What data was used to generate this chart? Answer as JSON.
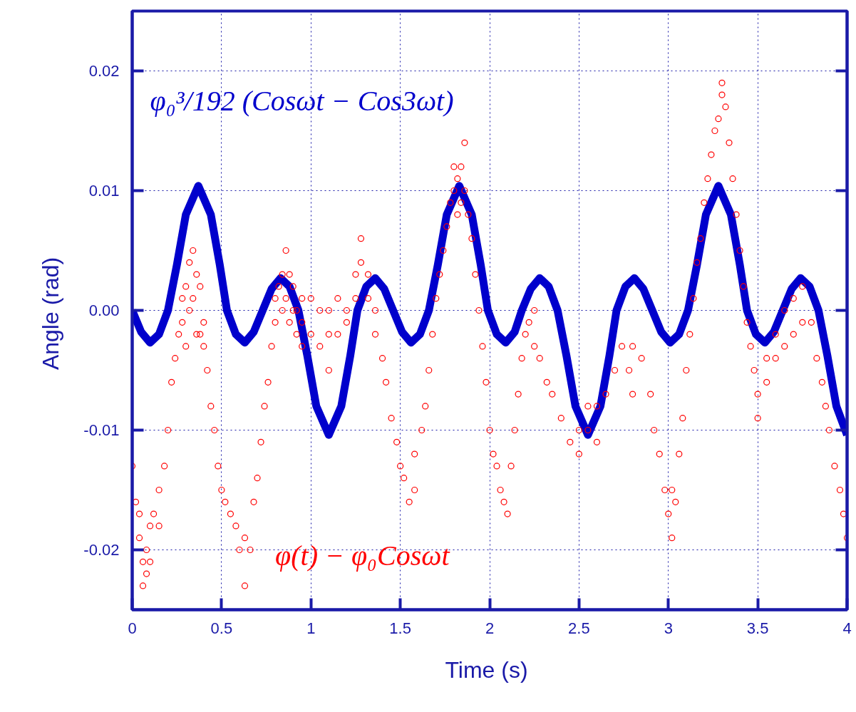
{
  "chart_data": {
    "type": "line",
    "xlabel": "Time  (s)",
    "ylabel": "Angle  (rad)",
    "xlim": [
      0,
      4
    ],
    "xticks": [
      0,
      0.5,
      1,
      1.5,
      2,
      2.5,
      3,
      3.5,
      4
    ],
    "ylim": [
      -0.025,
      0.025
    ],
    "yticks": [
      -0.02,
      -0.01,
      {
        "value": 0,
        "label": "0.00"
      },
      0.01,
      0.02
    ],
    "grid": true,
    "series": [
      {
        "name": "φ₀³/192 (Cosωt − Cos3ωt)",
        "color": "#0000cc",
        "marker": "none",
        "line_style": "solid",
        "x": [
          0,
          0.05,
          0.1,
          0.15,
          0.2,
          0.25,
          0.3,
          0.37,
          0.44,
          0.49,
          0.53,
          0.58,
          0.63,
          0.68,
          0.73,
          0.78,
          0.83,
          0.88,
          0.93,
          0.98,
          1.03,
          1.1,
          1.17,
          1.22,
          1.26,
          1.31,
          1.36,
          1.41,
          1.46,
          1.51,
          1.56,
          1.61,
          1.66,
          1.71,
          1.76,
          1.83,
          1.9,
          1.95,
          1.99,
          2.04,
          2.09,
          2.14,
          2.18,
          2.23,
          2.28,
          2.33,
          2.38,
          2.43,
          2.48,
          2.55,
          2.62,
          2.67,
          2.71,
          2.76,
          2.81,
          2.86,
          2.91,
          2.96,
          3.01,
          3.06,
          3.11,
          3.16,
          3.21,
          3.28,
          3.35,
          3.4,
          3.44,
          3.49,
          3.54,
          3.59,
          3.64,
          3.69,
          3.74,
          3.79,
          3.84,
          3.89,
          3.94,
          4.0
        ],
        "values": [
          0,
          -0.0018,
          -0.0027,
          -0.002,
          0,
          0.0038,
          0.008,
          0.0104,
          0.008,
          0.0038,
          0,
          -0.002,
          -0.0027,
          -0.0018,
          0,
          0.0018,
          0.0027,
          0.002,
          0,
          -0.0038,
          -0.008,
          -0.0104,
          -0.008,
          -0.0038,
          0,
          0.002,
          0.0027,
          0.0018,
          0,
          -0.0018,
          -0.0027,
          -0.002,
          0,
          0.0038,
          0.008,
          0.0104,
          0.008,
          0.0038,
          0,
          -0.002,
          -0.0027,
          -0.0018,
          0,
          0.0018,
          0.0027,
          0.002,
          0,
          -0.0038,
          -0.008,
          -0.0104,
          -0.008,
          -0.0038,
          0,
          0.002,
          0.0027,
          0.0018,
          0,
          -0.0018,
          -0.0027,
          -0.002,
          0,
          0.0038,
          0.008,
          0.0104,
          0.008,
          0.0038,
          0,
          -0.002,
          -0.0027,
          -0.0018,
          0,
          0.0018,
          0.0027,
          0.002,
          0,
          -0.0038,
          -0.008,
          -0.0104
        ]
      },
      {
        "name": "φ(t) − φ₀Cosωt",
        "type": "scatter",
        "color": "#ff0000",
        "marker": "circle",
        "x": [
          0,
          0.02,
          0.04,
          0.04,
          0.06,
          0.06,
          0.08,
          0.08,
          0.1,
          0.1,
          0.12,
          0.15,
          0.15,
          0.18,
          0.2,
          0.22,
          0.24,
          0.26,
          0.28,
          0.28,
          0.3,
          0.3,
          0.32,
          0.32,
          0.34,
          0.34,
          0.36,
          0.36,
          0.38,
          0.38,
          0.4,
          0.4,
          0.42,
          0.44,
          0.46,
          0.48,
          0.5,
          0.52,
          0.55,
          0.58,
          0.6,
          0.63,
          0.63,
          0.66,
          0.68,
          0.7,
          0.72,
          0.74,
          0.76,
          0.78,
          0.8,
          0.8,
          0.82,
          0.84,
          0.84,
          0.86,
          0.86,
          0.88,
          0.88,
          0.9,
          0.9,
          0.92,
          0.92,
          0.95,
          0.95,
          0.95,
          1.0,
          1.0,
          1.05,
          1.05,
          1.1,
          1.1,
          1.1,
          1.15,
          1.15,
          1.2,
          1.2,
          1.25,
          1.25,
          1.28,
          1.28,
          1.32,
          1.32,
          1.36,
          1.36,
          1.4,
          1.42,
          1.45,
          1.48,
          1.5,
          1.52,
          1.55,
          1.58,
          1.58,
          1.62,
          1.64,
          1.66,
          1.68,
          1.7,
          1.72,
          1.74,
          1.76,
          1.78,
          1.8,
          1.8,
          1.82,
          1.82,
          1.84,
          1.84,
          1.86,
          1.86,
          1.88,
          1.9,
          1.92,
          1.94,
          1.96,
          1.98,
          2.0,
          2.02,
          2.04,
          2.06,
          2.08,
          2.1,
          2.12,
          2.14,
          2.16,
          2.18,
          2.2,
          2.22,
          2.25,
          2.25,
          2.28,
          2.32,
          2.35,
          2.4,
          2.45,
          2.5,
          2.5,
          2.55,
          2.55,
          2.6,
          2.6,
          2.65,
          2.7,
          2.74,
          2.78,
          2.8,
          2.8,
          2.85,
          2.9,
          2.92,
          2.95,
          2.98,
          3.0,
          3.02,
          3.02,
          3.04,
          3.06,
          3.08,
          3.1,
          3.12,
          3.14,
          3.16,
          3.18,
          3.2,
          3.22,
          3.24,
          3.26,
          3.28,
          3.3,
          3.3,
          3.32,
          3.34,
          3.36,
          3.38,
          3.4,
          3.42,
          3.44,
          3.46,
          3.48,
          3.5,
          3.5,
          3.55,
          3.55,
          3.6,
          3.6,
          3.65,
          3.65,
          3.7,
          3.7,
          3.75,
          3.75,
          3.8,
          3.83,
          3.86,
          3.88,
          3.9,
          3.93,
          3.96,
          3.98,
          4.0
        ],
        "values": [
          -0.013,
          -0.016,
          -0.019,
          -0.017,
          -0.021,
          -0.023,
          -0.02,
          -0.022,
          -0.018,
          -0.021,
          -0.017,
          -0.015,
          -0.018,
          -0.013,
          -0.01,
          -0.006,
          -0.004,
          -0.002,
          -0.001,
          0.001,
          0.002,
          -0.003,
          0.004,
          0.0,
          0.005,
          0.001,
          0.003,
          -0.002,
          0.002,
          -0.002,
          -0.001,
          -0.003,
          -0.005,
          -0.008,
          -0.01,
          -0.013,
          -0.015,
          -0.016,
          -0.017,
          -0.018,
          -0.02,
          -0.019,
          -0.023,
          -0.02,
          -0.016,
          -0.014,
          -0.011,
          -0.008,
          -0.006,
          -0.003,
          -0.001,
          0.001,
          0.002,
          0.003,
          0.0,
          0.005,
          0.001,
          0.003,
          -0.001,
          0.002,
          0.0,
          0.0,
          -0.002,
          0.001,
          -0.001,
          -0.003,
          0.001,
          -0.002,
          0.0,
          -0.003,
          0.0,
          -0.002,
          -0.005,
          0.001,
          -0.002,
          0.0,
          -0.001,
          0.003,
          0.001,
          0.004,
          0.006,
          0.003,
          0.001,
          0.0,
          -0.002,
          -0.004,
          -0.006,
          -0.009,
          -0.011,
          -0.013,
          -0.014,
          -0.016,
          -0.015,
          -0.012,
          -0.01,
          -0.008,
          -0.005,
          -0.002,
          0.001,
          0.003,
          0.005,
          0.007,
          0.009,
          0.01,
          0.012,
          0.011,
          0.008,
          0.012,
          0.009,
          0.014,
          0.01,
          0.008,
          0.006,
          0.003,
          0.0,
          -0.003,
          -0.006,
          -0.01,
          -0.012,
          -0.013,
          -0.015,
          -0.016,
          -0.017,
          -0.013,
          -0.01,
          -0.007,
          -0.004,
          -0.002,
          -0.001,
          -0.003,
          0.0,
          -0.004,
          -0.006,
          -0.007,
          -0.009,
          -0.011,
          -0.01,
          -0.012,
          -0.01,
          -0.008,
          -0.011,
          -0.008,
          -0.007,
          -0.005,
          -0.003,
          -0.005,
          -0.003,
          -0.007,
          -0.004,
          -0.007,
          -0.01,
          -0.012,
          -0.015,
          -0.017,
          -0.019,
          -0.015,
          -0.016,
          -0.012,
          -0.009,
          -0.005,
          -0.002,
          0.001,
          0.004,
          0.006,
          0.009,
          0.011,
          0.013,
          0.015,
          0.016,
          0.018,
          0.019,
          0.017,
          0.014,
          0.011,
          0.008,
          0.005,
          0.002,
          -0.001,
          -0.003,
          -0.005,
          -0.007,
          -0.009,
          -0.006,
          -0.004,
          -0.004,
          -0.002,
          0.0,
          -0.003,
          0.001,
          -0.002,
          0.002,
          -0.001,
          -0.001,
          -0.004,
          -0.006,
          -0.008,
          -0.01,
          -0.013,
          -0.015,
          -0.017,
          -0.019
        ]
      }
    ]
  }
}
